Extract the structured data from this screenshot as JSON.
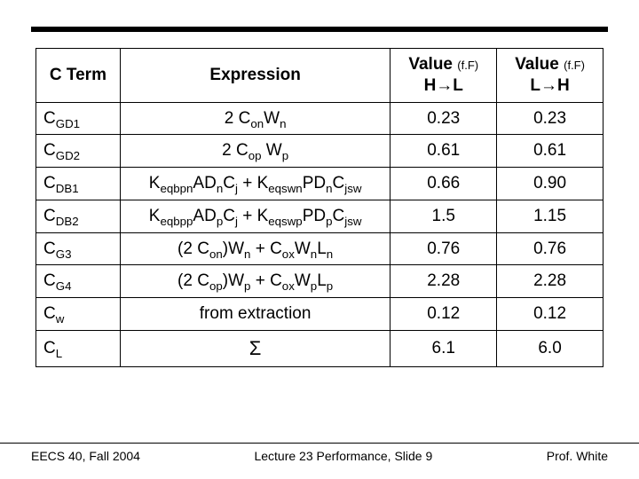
{
  "table": {
    "headers": {
      "cterm": "C Term",
      "expression": "Expression",
      "value_unit": "Value (f.F)",
      "hl": "H→L",
      "lh": "L→H"
    },
    "rows": [
      {
        "term_html": "C<sub>GD1</sub>",
        "expr_html": "2 C<sub>on</sub>W<sub>n</sub>",
        "hl": "0.23",
        "lh": "0.23"
      },
      {
        "term_html": "C<sub>GD2</sub>",
        "expr_html": "2 C<sub>op</sub> W<sub>p</sub>",
        "hl": "0.61",
        "lh": "0.61"
      },
      {
        "term_html": "C<sub>DB1</sub>",
        "expr_html": "K<sub>eqbpn</sub>AD<sub>n</sub>C<sub>j</sub> + K<sub>eqswn</sub>PD<sub>n</sub>C<sub>jsw</sub>",
        "hl": "0.66",
        "lh": "0.90"
      },
      {
        "term_html": "C<sub>DB2</sub>",
        "expr_html": "K<sub>eqbpp</sub>AD<sub>p</sub>C<sub>j</sub> + K<sub>eqswp</sub>PD<sub>p</sub>C<sub>jsw</sub>",
        "hl": "1.5",
        "lh": "1.15"
      },
      {
        "term_html": "C<sub>G3</sub>",
        "expr_html": "(2 C<sub>on</sub>)W<sub>n</sub> + C<sub>ox</sub>W<sub>n</sub>L<sub>n</sub>",
        "hl": "0.76",
        "lh": "0.76"
      },
      {
        "term_html": "C<sub>G4</sub>",
        "expr_html": "(2 C<sub>op</sub>)W<sub>p</sub> + C<sub>ox</sub>W<sub>p</sub>L<sub>p</sub>",
        "hl": "2.28",
        "lh": "2.28"
      },
      {
        "term_html": "C<sub>w</sub>",
        "expr_html": "from extraction",
        "hl": "0.12",
        "lh": "0.12"
      },
      {
        "term_html": "C<sub>L</sub>",
        "expr_html": "<span class=\"sigma\">Σ</span>",
        "hl": "6.1",
        "lh": "6.0"
      }
    ]
  },
  "footer": {
    "left": "EECS 40, Fall 2004",
    "center": "Lecture 23 Performance, Slide 9",
    "right": "Prof. White"
  },
  "colors": {
    "border": "#000000",
    "background": "#ffffff",
    "text": "#000000"
  }
}
